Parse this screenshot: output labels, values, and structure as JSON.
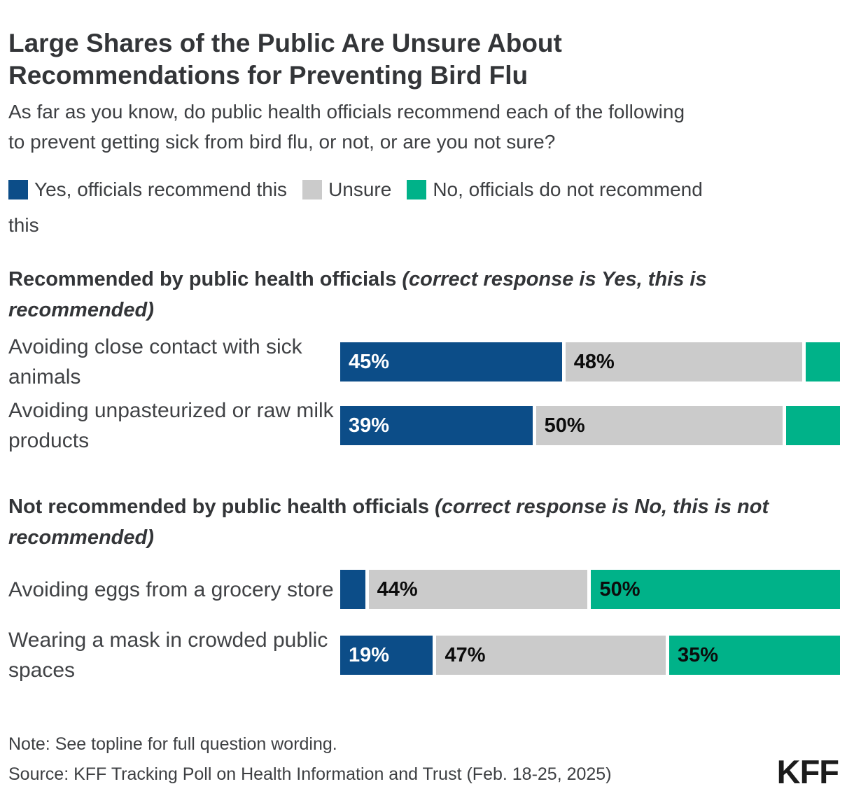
{
  "title": {
    "line1": "Large Shares of the Public Are Unsure About",
    "line2": "Recommendations for Preventing Bird Flu"
  },
  "subtitle": {
    "line1": "As far as you know, do public health officials recommend each of the following",
    "line2": "to prevent getting sick from bird flu, or not, or are you not sure?"
  },
  "legend": {
    "items": [
      {
        "key": "yes",
        "label": "Yes, officials recommend this",
        "color": "#0C4D88"
      },
      {
        "key": "unsure",
        "label": "Unsure",
        "color": "#CBCBCB"
      },
      {
        "key": "no",
        "label": "No, officials do not recommend",
        "label_wrap": "this",
        "color": "#00B289"
      }
    ]
  },
  "footer": {
    "note": "Note: See topline for full question wording.",
    "source": "Source: KFF Tracking Poll on Health Information and Trust (Feb. 18-25, 2025)",
    "logo": "KFF"
  },
  "chart_data": {
    "type": "bar",
    "subtype": "horizontal-stacked",
    "series": [
      "Yes, officials recommend this",
      "Unsure",
      "No, officials do not recommend this"
    ],
    "colors": {
      "yes": "#0C4D88",
      "unsure": "#CBCBCB",
      "no": "#00B289"
    },
    "axis": {
      "range_percent": [
        0,
        100
      ],
      "grid": false,
      "legend_position": "top"
    },
    "groups": [
      {
        "header_bold": "Recommended by public health officials",
        "header_italic": "(correct response is Yes, this is recommended)",
        "rows": [
          {
            "category": "Avoiding close contact with sick animals",
            "values": {
              "yes": 45,
              "unsure": 48,
              "no": 7
            },
            "labels": {
              "yes": "45%",
              "unsure": "48%",
              "no": ""
            }
          },
          {
            "category": "Avoiding unpasteurized or raw milk products",
            "values": {
              "yes": 39,
              "unsure": 50,
              "no": 11
            },
            "labels": {
              "yes": "39%",
              "unsure": "50%",
              "no": ""
            }
          }
        ]
      },
      {
        "header_bold": "Not recommended by public health officials",
        "header_italic": "(correct response is No, this is not recommended)",
        "rows": [
          {
            "category": "Avoiding eggs from a grocery store",
            "values": {
              "yes": 5,
              "unsure": 44,
              "no": 50
            },
            "labels": {
              "yes": "",
              "unsure": "44%",
              "no": "50%"
            }
          },
          {
            "category": "Wearing a mask in crowded public spaces",
            "values": {
              "yes": 19,
              "unsure": 47,
              "no": 35
            },
            "labels": {
              "yes": "19%",
              "unsure": "47%",
              "no": "35%"
            }
          }
        ]
      }
    ]
  }
}
